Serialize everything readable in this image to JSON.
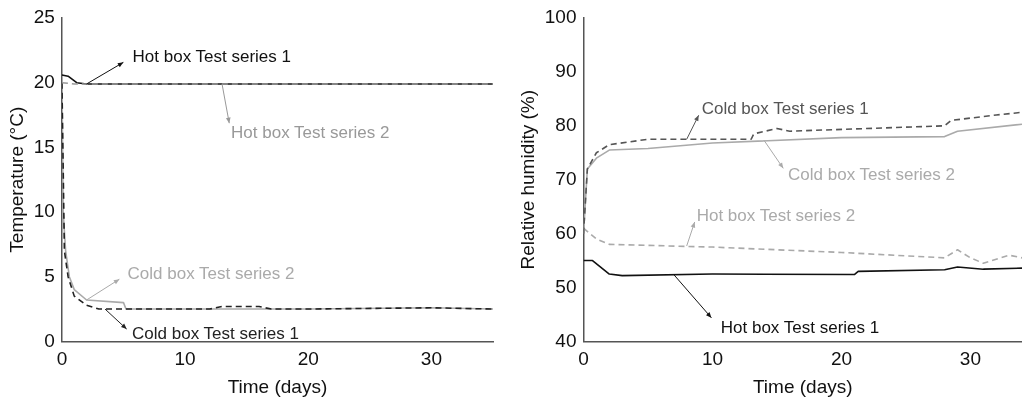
{
  "chart_data": [
    {
      "type": "line",
      "xlabel": "Time (days)",
      "ylabel": "Temperature (°C)",
      "xlim": [
        0,
        35
      ],
      "ylim": [
        0,
        25
      ],
      "xticks": [
        0,
        10,
        20,
        30
      ],
      "yticks": [
        0,
        5,
        10,
        15,
        20,
        25
      ],
      "series": [
        {
          "color": "#111111",
          "line_style": "solid",
          "x": [
            0,
            0.5,
            1.2,
            2,
            10,
            20,
            30,
            35
          ],
          "values": [
            20.6,
            20.5,
            20.0,
            19.9,
            19.9,
            19.9,
            19.9,
            19.9
          ]
        },
        {
          "color": "#999999",
          "line_style": "dashed",
          "x": [
            0,
            1,
            2,
            10,
            20,
            30,
            35
          ],
          "values": [
            20.0,
            19.9,
            19.9,
            19.9,
            19.9,
            19.9,
            19.9
          ]
        },
        {
          "color": "#aaaaaa",
          "line_style": "solid",
          "x": [
            0,
            0.1,
            0.3,
            0.6,
            1,
            2,
            5,
            5.2,
            10,
            20,
            30,
            35
          ],
          "values": [
            20,
            10,
            7,
            5,
            4,
            3.2,
            3.0,
            2.5,
            2.5,
            2.5,
            2.6,
            2.5
          ]
        },
        {
          "color": "#222222",
          "line_style": "dashed",
          "x": [
            0,
            0.2,
            0.5,
            1,
            2,
            3,
            12,
            13,
            16,
            17,
            20,
            30,
            35
          ],
          "values": [
            20,
            7,
            5,
            3.5,
            2.8,
            2.5,
            2.5,
            2.7,
            2.7,
            2.5,
            2.5,
            2.6,
            2.5
          ]
        }
      ],
      "annotations": [
        {
          "text": "Hot box Test series 1",
          "x": 2,
          "y": 19.9
        },
        {
          "text": "Hot box Test series 2",
          "x": 13,
          "y": 19.9
        },
        {
          "text": "Cold box Test series 2",
          "x": 2,
          "y": 3.2
        },
        {
          "text": "Cold box Test series 1",
          "x": 3.5,
          "y": 2.5
        }
      ]
    },
    {
      "type": "line",
      "xlabel": "Time (days)",
      "ylabel": "Relative humidity (%)",
      "xlim": [
        0,
        34
      ],
      "ylim": [
        40,
        100
      ],
      "xticks": [
        0,
        10,
        20,
        30
      ],
      "yticks": [
        40,
        50,
        60,
        70,
        80,
        90,
        100
      ],
      "series": [
        {
          "color": "#555555",
          "line_style": "dashed",
          "x": [
            0,
            0.3,
            1,
            2,
            5,
            13,
            13.2,
            15,
            16,
            28,
            28.5,
            32,
            34
          ],
          "values": [
            60,
            72,
            75,
            76.5,
            77.5,
            77.5,
            78.5,
            79.5,
            79,
            80,
            81,
            82,
            82.5
          ]
        },
        {
          "color": "#aaaaaa",
          "line_style": "solid",
          "x": [
            0,
            0.3,
            1,
            2,
            5,
            10,
            20,
            28,
            29,
            34
          ],
          "values": [
            60,
            72,
            74,
            75.5,
            75.8,
            76.8,
            77.8,
            78,
            79,
            80.3
          ]
        },
        {
          "color": "#aaaaaa",
          "line_style": "dashed",
          "x": [
            0,
            1,
            2,
            10,
            20,
            28,
            29,
            30,
            31,
            33,
            34
          ],
          "values": [
            61,
            59,
            58,
            57.5,
            56.5,
            55.5,
            57,
            55.5,
            54.5,
            56,
            55.5
          ]
        },
        {
          "color": "#111111",
          "line_style": "solid",
          "x": [
            0,
            0.7,
            2,
            3,
            10,
            21,
            21.3,
            28,
            29,
            31,
            34
          ],
          "values": [
            55,
            55,
            52.5,
            52.2,
            52.5,
            52.4,
            53,
            53.3,
            53.8,
            53.4,
            53.6
          ]
        }
      ],
      "annotations": [
        {
          "text": "Cold box Test series 1",
          "x": 8,
          "y": 77.5
        },
        {
          "text": "Cold box Test series 2",
          "x": 14,
          "y": 77.3
        },
        {
          "text": "Hot box Test series 2",
          "x": 8,
          "y": 57.7
        },
        {
          "text": "Hot box Test series 1",
          "x": 7,
          "y": 52.4
        }
      ]
    }
  ]
}
